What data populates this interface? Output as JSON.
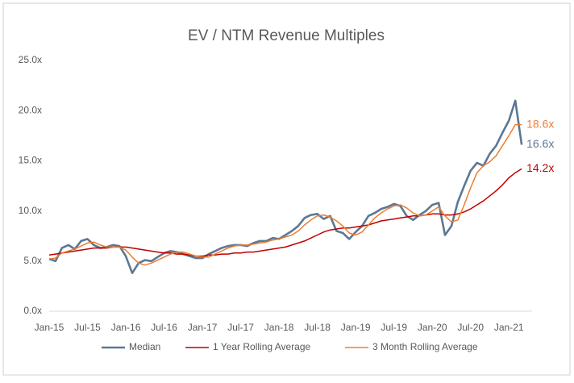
{
  "chart_data": {
    "type": "line",
    "title": "EV / NTM Revenue Multiples",
    "categories": [
      "Jan-15",
      null,
      null,
      null,
      null,
      null,
      "Jul-15",
      null,
      null,
      null,
      null,
      null,
      "Jan-16",
      null,
      null,
      null,
      null,
      null,
      "Jul-16",
      null,
      null,
      null,
      null,
      null,
      "Jan-17",
      null,
      null,
      null,
      null,
      null,
      "Jul-17",
      null,
      null,
      null,
      null,
      null,
      "Jan-18",
      null,
      null,
      null,
      null,
      null,
      "Jul-18",
      null,
      null,
      null,
      null,
      null,
      "Jan-19",
      null,
      null,
      null,
      null,
      null,
      "Jul-19",
      null,
      null,
      null,
      null,
      null,
      "Jan-20",
      null,
      null,
      null,
      null,
      null,
      "Jul-20",
      null,
      null,
      null,
      null,
      null,
      "Jan-21",
      null,
      null
    ],
    "series": [
      {
        "name": "Median",
        "color": "#5b7893",
        "width": 2.6,
        "values": [
          5.2,
          5.0,
          6.3,
          6.6,
          6.2,
          7.0,
          7.2,
          6.6,
          6.3,
          6.4,
          6.6,
          6.5,
          5.5,
          3.8,
          4.8,
          5.1,
          5.0,
          5.4,
          5.8,
          6.0,
          5.9,
          5.7,
          5.5,
          5.3,
          5.3,
          5.7,
          6.0,
          6.3,
          6.5,
          6.6,
          6.6,
          6.5,
          6.8,
          7.0,
          7.0,
          7.3,
          7.2,
          7.6,
          8.0,
          8.5,
          9.3,
          9.6,
          9.7,
          9.2,
          9.5,
          8.0,
          7.8,
          7.2,
          7.9,
          8.5,
          9.5,
          9.8,
          10.2,
          10.4,
          10.7,
          10.5,
          9.5,
          9.1,
          9.6,
          10.0,
          10.6,
          10.8,
          7.6,
          8.5,
          10.9,
          12.5,
          14.0,
          14.8,
          14.5,
          15.7,
          16.5,
          17.8,
          19.0,
          21.0,
          16.6
        ],
        "value_labels": [
          null,
          null,
          null,
          null,
          null,
          null,
          null,
          null,
          null,
          null,
          null,
          null,
          null,
          null,
          null,
          null,
          null,
          null,
          null,
          null,
          null,
          null,
          null,
          null,
          null,
          null,
          null,
          null,
          null,
          null,
          null,
          null,
          null,
          null,
          null,
          null,
          null,
          null,
          null,
          null,
          null,
          null,
          null,
          null,
          null,
          null,
          null,
          null,
          null,
          null,
          null,
          null,
          null,
          null,
          null,
          null,
          null,
          null,
          null,
          null,
          null,
          null,
          null,
          null,
          null,
          null,
          null,
          null,
          null,
          null,
          null,
          null,
          null,
          null,
          "16.6x"
        ]
      },
      {
        "name": "1 Year Rolling Average",
        "color": "#c00000",
        "width": 1.5,
        "values": [
          5.6,
          5.7,
          5.8,
          5.9,
          6.0,
          6.1,
          6.2,
          6.3,
          6.3,
          6.3,
          6.4,
          6.4,
          6.4,
          6.3,
          6.2,
          6.1,
          6.0,
          5.9,
          5.8,
          5.8,
          5.7,
          5.7,
          5.6,
          5.5,
          5.5,
          5.6,
          5.6,
          5.7,
          5.7,
          5.8,
          5.8,
          5.9,
          5.9,
          6.0,
          6.1,
          6.2,
          6.3,
          6.4,
          6.6,
          6.8,
          7.0,
          7.3,
          7.6,
          7.9,
          8.1,
          8.2,
          8.3,
          8.3,
          8.4,
          8.5,
          8.6,
          8.8,
          9.0,
          9.1,
          9.2,
          9.3,
          9.4,
          9.5,
          9.5,
          9.6,
          9.7,
          9.7,
          9.6,
          9.6,
          9.7,
          9.9,
          10.2,
          10.6,
          11.0,
          11.5,
          12.0,
          12.6,
          13.3,
          13.8,
          14.2
        ],
        "value_labels": [
          null,
          null,
          null,
          null,
          null,
          null,
          null,
          null,
          null,
          null,
          null,
          null,
          null,
          null,
          null,
          null,
          null,
          null,
          null,
          null,
          null,
          null,
          null,
          null,
          null,
          null,
          null,
          null,
          null,
          null,
          null,
          null,
          null,
          null,
          null,
          null,
          null,
          null,
          null,
          null,
          null,
          null,
          null,
          null,
          null,
          null,
          null,
          null,
          null,
          null,
          null,
          null,
          null,
          null,
          null,
          null,
          null,
          null,
          null,
          null,
          null,
          null,
          null,
          null,
          null,
          null,
          null,
          null,
          null,
          null,
          null,
          null,
          null,
          null,
          "14.2x"
        ]
      },
      {
        "name": "3 Month Rolling Average",
        "color": "#ed7d31",
        "width": 1.5,
        "values": [
          5.2,
          5.3,
          5.8,
          6.0,
          6.2,
          6.5,
          6.8,
          6.9,
          6.6,
          6.4,
          6.4,
          6.4,
          6.1,
          5.4,
          4.8,
          4.6,
          4.8,
          5.1,
          5.4,
          5.7,
          5.9,
          5.9,
          5.7,
          5.5,
          5.4,
          5.4,
          5.7,
          6.0,
          6.3,
          6.5,
          6.6,
          6.6,
          6.7,
          6.8,
          6.9,
          7.1,
          7.2,
          7.4,
          7.6,
          8.0,
          8.6,
          9.1,
          9.5,
          9.6,
          9.4,
          9.0,
          8.5,
          7.8,
          7.6,
          7.9,
          8.6,
          9.3,
          9.8,
          10.2,
          10.5,
          10.6,
          10.3,
          9.8,
          9.5,
          9.6,
          10.0,
          10.4,
          9.5,
          8.9,
          9.1,
          10.6,
          12.3,
          13.8,
          14.5,
          14.9,
          15.5,
          16.5,
          17.5,
          18.6,
          18.6
        ],
        "value_labels": [
          null,
          null,
          null,
          null,
          null,
          null,
          null,
          null,
          null,
          null,
          null,
          null,
          null,
          null,
          null,
          null,
          null,
          null,
          null,
          null,
          null,
          null,
          null,
          null,
          null,
          null,
          null,
          null,
          null,
          null,
          null,
          null,
          null,
          null,
          null,
          null,
          null,
          null,
          null,
          null,
          null,
          null,
          null,
          null,
          null,
          null,
          null,
          null,
          null,
          null,
          null,
          null,
          null,
          null,
          null,
          null,
          null,
          null,
          null,
          null,
          null,
          null,
          null,
          null,
          null,
          null,
          null,
          null,
          null,
          null,
          null,
          null,
          null,
          null,
          "18.6x"
        ]
      }
    ],
    "ylim": [
      0,
      25
    ],
    "yticks": [
      {
        "value": 0,
        "label": "0.0x"
      },
      {
        "value": 5,
        "label": "5.0x"
      },
      {
        "value": 10,
        "label": "10.0x"
      },
      {
        "value": 15,
        "label": "15.0x"
      },
      {
        "value": 20,
        "label": "20.0x"
      },
      {
        "value": 25,
        "label": "25.0x"
      }
    ],
    "grid": false,
    "legend": "bottom"
  }
}
